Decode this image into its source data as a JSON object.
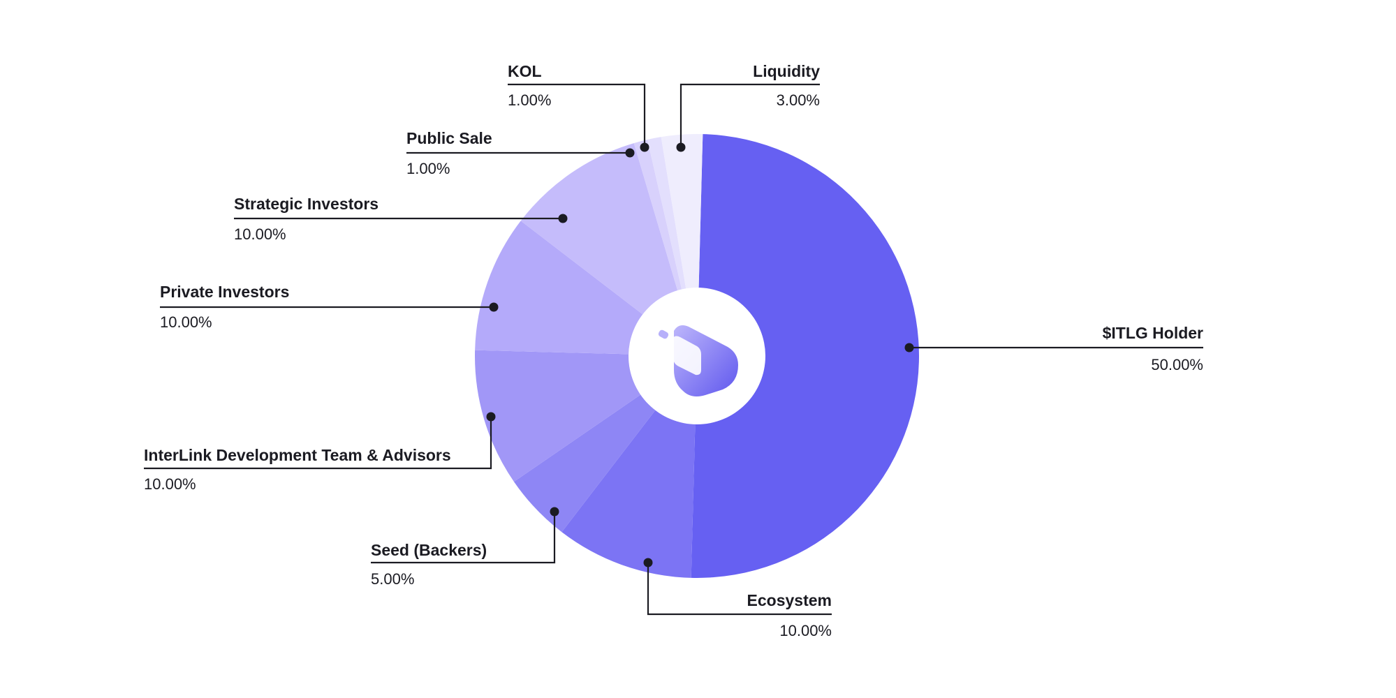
{
  "chart_data": {
    "type": "pie",
    "donut": true,
    "slices": [
      {
        "name": "$ITLG Holder",
        "value": 50,
        "label": "50.00%",
        "color": "#6660f2"
      },
      {
        "name": "Ecosystem",
        "value": 10,
        "label": "10.00%",
        "color": "#7c74f4"
      },
      {
        "name": "Seed (Backers)",
        "value": 5,
        "label": "5.00%",
        "color": "#8e86f5"
      },
      {
        "name": "InterLink Development Team & Advisors",
        "value": 10,
        "label": "10.00%",
        "color": "#a197f7"
      },
      {
        "name": "Private Investors",
        "value": 10,
        "label": "10.00%",
        "color": "#b4aafa"
      },
      {
        "name": "Strategic Investors",
        "value": 10,
        "label": "10.00%",
        "color": "#c5bcfb"
      },
      {
        "name": "Public Sale",
        "value": 1,
        "label": "1.00%",
        "color": "#d8d1fc"
      },
      {
        "name": "KOL",
        "value": 1,
        "label": "1.00%",
        "color": "#e3dffd"
      },
      {
        "name": "Liquidity",
        "value": 3,
        "label": "3.00%",
        "color": "#efedfd"
      }
    ],
    "center_logo": "interlink-logo-icon"
  }
}
